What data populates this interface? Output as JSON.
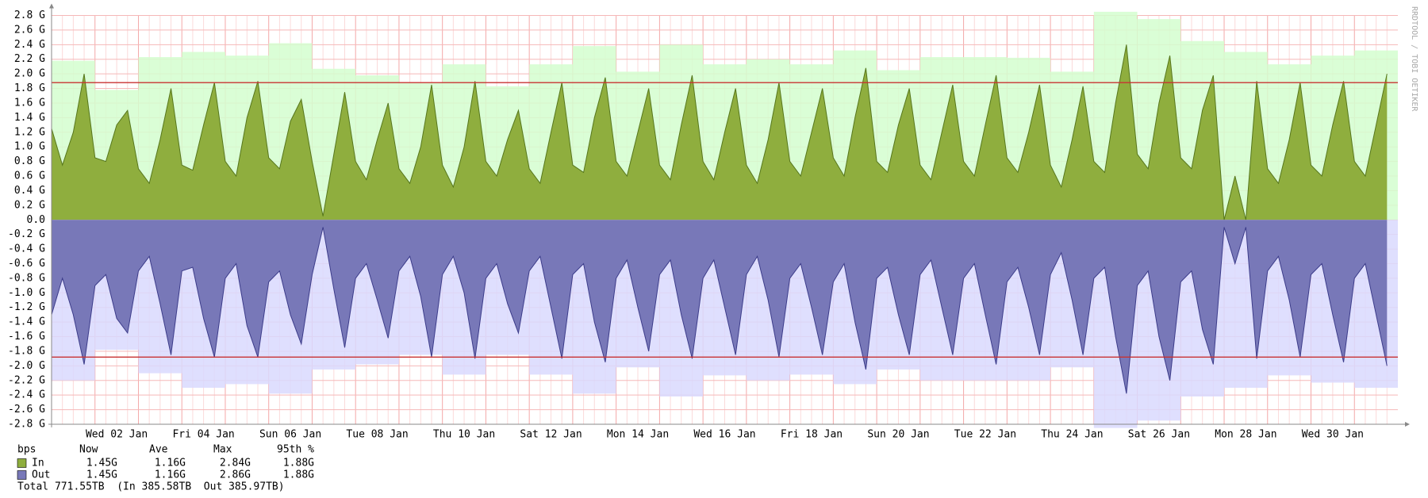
{
  "chart_data": {
    "type": "area",
    "watermark": "RRDTOOL / TOBI OETIKER",
    "categories": [
      null,
      null,
      null,
      null,
      null,
      null,
      "Wed 02 Jan",
      null,
      null,
      null,
      null,
      null,
      null,
      null,
      "Fri 04 Jan",
      null,
      null,
      null,
      null,
      null,
      null,
      null,
      "Sun 06 Jan",
      null,
      null,
      null,
      null,
      null,
      null,
      null,
      "Tue 08 Jan",
      null,
      null,
      null,
      null,
      null,
      null,
      null,
      "Thu 10 Jan",
      null,
      null,
      null,
      null,
      null,
      null,
      null,
      "Sat 12 Jan",
      null,
      null,
      null,
      null,
      null,
      null,
      null,
      "Mon 14 Jan",
      null,
      null,
      null,
      null,
      null,
      null,
      null,
      "Wed 16 Jan",
      null,
      null,
      null,
      null,
      null,
      null,
      null,
      "Fri 18 Jan",
      null,
      null,
      null,
      null,
      null,
      null,
      null,
      "Sun 20 Jan",
      null,
      null,
      null,
      null,
      null,
      null,
      null,
      "Tue 22 Jan",
      null,
      null,
      null,
      null,
      null,
      null,
      null,
      "Thu 24 Jan",
      null,
      null,
      null,
      null,
      null,
      null,
      null,
      "Sat 26 Jan",
      null,
      null,
      null,
      null,
      null,
      null,
      null,
      "Mon 28 Jan",
      null,
      null,
      null,
      null,
      null,
      null,
      null,
      "Wed 30 Jan",
      null,
      null,
      null,
      null,
      null
    ],
    "series": [
      {
        "name": "In",
        "color": "#8fae3e",
        "line_color": "#56761c",
        "max_color": "#d4fecf",
        "values": [
          1.25,
          0.75,
          1.2,
          2.0,
          0.85,
          0.8,
          1.3,
          1.5,
          0.7,
          0.5,
          1.1,
          1.8,
          0.75,
          0.68,
          1.3,
          1.88,
          0.8,
          0.6,
          1.4,
          1.9,
          0.85,
          0.7,
          1.35,
          1.65,
          0.8,
          0.05,
          0.9,
          1.75,
          0.8,
          0.55,
          1.1,
          1.6,
          0.7,
          0.5,
          1.0,
          1.85,
          0.75,
          0.45,
          1.0,
          1.9,
          0.8,
          0.6,
          1.1,
          1.5,
          0.7,
          0.5,
          1.2,
          1.88,
          0.75,
          0.65,
          1.4,
          1.95,
          0.8,
          0.6,
          1.2,
          1.8,
          0.75,
          0.55,
          1.3,
          1.98,
          0.8,
          0.55,
          1.2,
          1.8,
          0.75,
          0.5,
          1.1,
          1.88,
          0.8,
          0.6,
          1.2,
          1.8,
          0.85,
          0.6,
          1.4,
          2.08,
          0.8,
          0.65,
          1.3,
          1.8,
          0.75,
          0.55,
          1.2,
          1.85,
          0.8,
          0.6,
          1.3,
          1.98,
          0.85,
          0.65,
          1.2,
          1.85,
          0.75,
          0.45,
          1.1,
          1.83,
          0.8,
          0.65,
          1.6,
          2.4,
          0.9,
          0.7,
          1.6,
          2.25,
          0.85,
          0.7,
          1.5,
          1.98,
          0.0,
          0.6,
          0.0,
          1.9,
          0.7,
          0.5,
          1.1,
          1.88,
          0.75,
          0.6,
          1.3,
          1.9,
          0.8,
          0.6,
          1.3,
          2.0
        ],
        "daily_max": [
          2.18,
          1.78,
          2.23,
          2.3,
          2.25,
          2.42,
          2.07,
          1.98,
          1.88,
          2.13,
          1.83,
          2.13,
          2.38,
          2.03,
          2.4,
          2.13,
          2.2,
          2.13,
          2.32,
          2.05,
          2.23,
          2.23,
          2.22,
          2.03,
          2.85,
          2.75,
          2.45,
          2.3,
          2.13,
          2.25,
          2.32
        ],
        "percentile_95": 1.88,
        "stats": [
          "1.45G",
          "1.16G",
          "2.84G",
          "1.88G"
        ]
      },
      {
        "name": "Out",
        "color": "#7878b8",
        "line_color": "#3c3c8a",
        "max_color": "#d9d9fe",
        "values": [
          -1.3,
          -0.8,
          -1.3,
          -1.98,
          -0.9,
          -0.75,
          -1.35,
          -1.55,
          -0.7,
          -0.5,
          -1.15,
          -1.85,
          -0.7,
          -0.65,
          -1.35,
          -1.88,
          -0.8,
          -0.6,
          -1.45,
          -1.88,
          -0.85,
          -0.7,
          -1.3,
          -1.7,
          -0.75,
          -0.1,
          -0.95,
          -1.75,
          -0.8,
          -0.6,
          -1.1,
          -1.62,
          -0.7,
          -0.5,
          -1.05,
          -1.88,
          -0.75,
          -0.5,
          -1.0,
          -1.9,
          -0.8,
          -0.6,
          -1.15,
          -1.55,
          -0.7,
          -0.5,
          -1.2,
          -1.9,
          -0.75,
          -0.6,
          -1.4,
          -1.95,
          -0.8,
          -0.55,
          -1.2,
          -1.8,
          -0.75,
          -0.55,
          -1.3,
          -1.9,
          -0.8,
          -0.55,
          -1.2,
          -1.85,
          -0.75,
          -0.5,
          -1.1,
          -1.88,
          -0.8,
          -0.6,
          -1.2,
          -1.85,
          -0.85,
          -0.6,
          -1.4,
          -2.05,
          -0.8,
          -0.65,
          -1.3,
          -1.85,
          -0.75,
          -0.55,
          -1.2,
          -1.85,
          -0.8,
          -0.6,
          -1.3,
          -1.98,
          -0.85,
          -0.65,
          -1.2,
          -1.85,
          -0.75,
          -0.45,
          -1.1,
          -1.85,
          -0.8,
          -0.65,
          -1.6,
          -2.38,
          -0.9,
          -0.7,
          -1.6,
          -2.2,
          -0.85,
          -0.7,
          -1.5,
          -1.98,
          -0.1,
          -0.6,
          -0.1,
          -1.9,
          -0.7,
          -0.5,
          -1.1,
          -1.88,
          -0.75,
          -0.6,
          -1.3,
          -1.95,
          -0.8,
          -0.6,
          -1.3,
          -2.0
        ],
        "daily_max": [
          -2.2,
          -1.78,
          -2.1,
          -2.3,
          -2.25,
          -2.38,
          -2.05,
          -1.98,
          -1.85,
          -2.12,
          -1.85,
          -2.12,
          -2.38,
          -2.02,
          -2.42,
          -2.13,
          -2.2,
          -2.12,
          -2.25,
          -2.05,
          -2.2,
          -2.2,
          -2.2,
          -2.02,
          -2.85,
          -2.75,
          -2.42,
          -2.3,
          -2.13,
          -2.23,
          -2.3
        ],
        "percentile_95": -1.88,
        "stats": [
          "1.45G",
          "1.16G",
          "2.86G",
          "1.88G"
        ]
      }
    ],
    "percentile_color": "#c83232",
    "ylim": [
      -2.8,
      2.8
    ],
    "yticks": [
      {
        "value": 2.8,
        "label": "2.8 G"
      },
      {
        "value": 2.6,
        "label": "2.6 G"
      },
      {
        "value": 2.4,
        "label": "2.4 G"
      },
      {
        "value": 2.2,
        "label": "2.2 G"
      },
      {
        "value": 2.0,
        "label": "2.0 G"
      },
      {
        "value": 1.8,
        "label": "1.8 G"
      },
      {
        "value": 1.6,
        "label": "1.6 G"
      },
      {
        "value": 1.4,
        "label": "1.4 G"
      },
      {
        "value": 1.2,
        "label": "1.2 G"
      },
      {
        "value": 1.0,
        "label": "1.0 G"
      },
      {
        "value": 0.8,
        "label": "0.8 G"
      },
      {
        "value": 0.6,
        "label": "0.6 G"
      },
      {
        "value": 0.4,
        "label": "0.4 G"
      },
      {
        "value": 0.2,
        "label": "0.2 G"
      },
      {
        "value": 0,
        "label": "0.0"
      },
      {
        "value": -0.2,
        "label": "-0.2 G"
      },
      {
        "value": -0.4,
        "label": "-0.4 G"
      },
      {
        "value": -0.6,
        "label": "-0.6 G"
      },
      {
        "value": -0.8,
        "label": "-0.8 G"
      },
      {
        "value": -1.0,
        "label": "-1.0 G"
      },
      {
        "value": -1.2,
        "label": "-1.2 G"
      },
      {
        "value": -1.4,
        "label": "-1.4 G"
      },
      {
        "value": -1.6,
        "label": "-1.6 G"
      },
      {
        "value": -1.8,
        "label": "-1.8 G"
      },
      {
        "value": -2.0,
        "label": "-2.0 G"
      },
      {
        "value": -2.2,
        "label": "-2.2 G"
      },
      {
        "value": -2.4,
        "label": "-2.4 G"
      },
      {
        "value": -2.6,
        "label": "-2.6 G"
      },
      {
        "value": -2.8,
        "label": "-2.8 G"
      }
    ],
    "grid": true,
    "stats_columns": [
      "bps",
      "Now",
      "Ave",
      "Max",
      "95th %"
    ],
    "total": "Total 771.55TB  (In 385.58TB  Out 385.97TB)"
  }
}
